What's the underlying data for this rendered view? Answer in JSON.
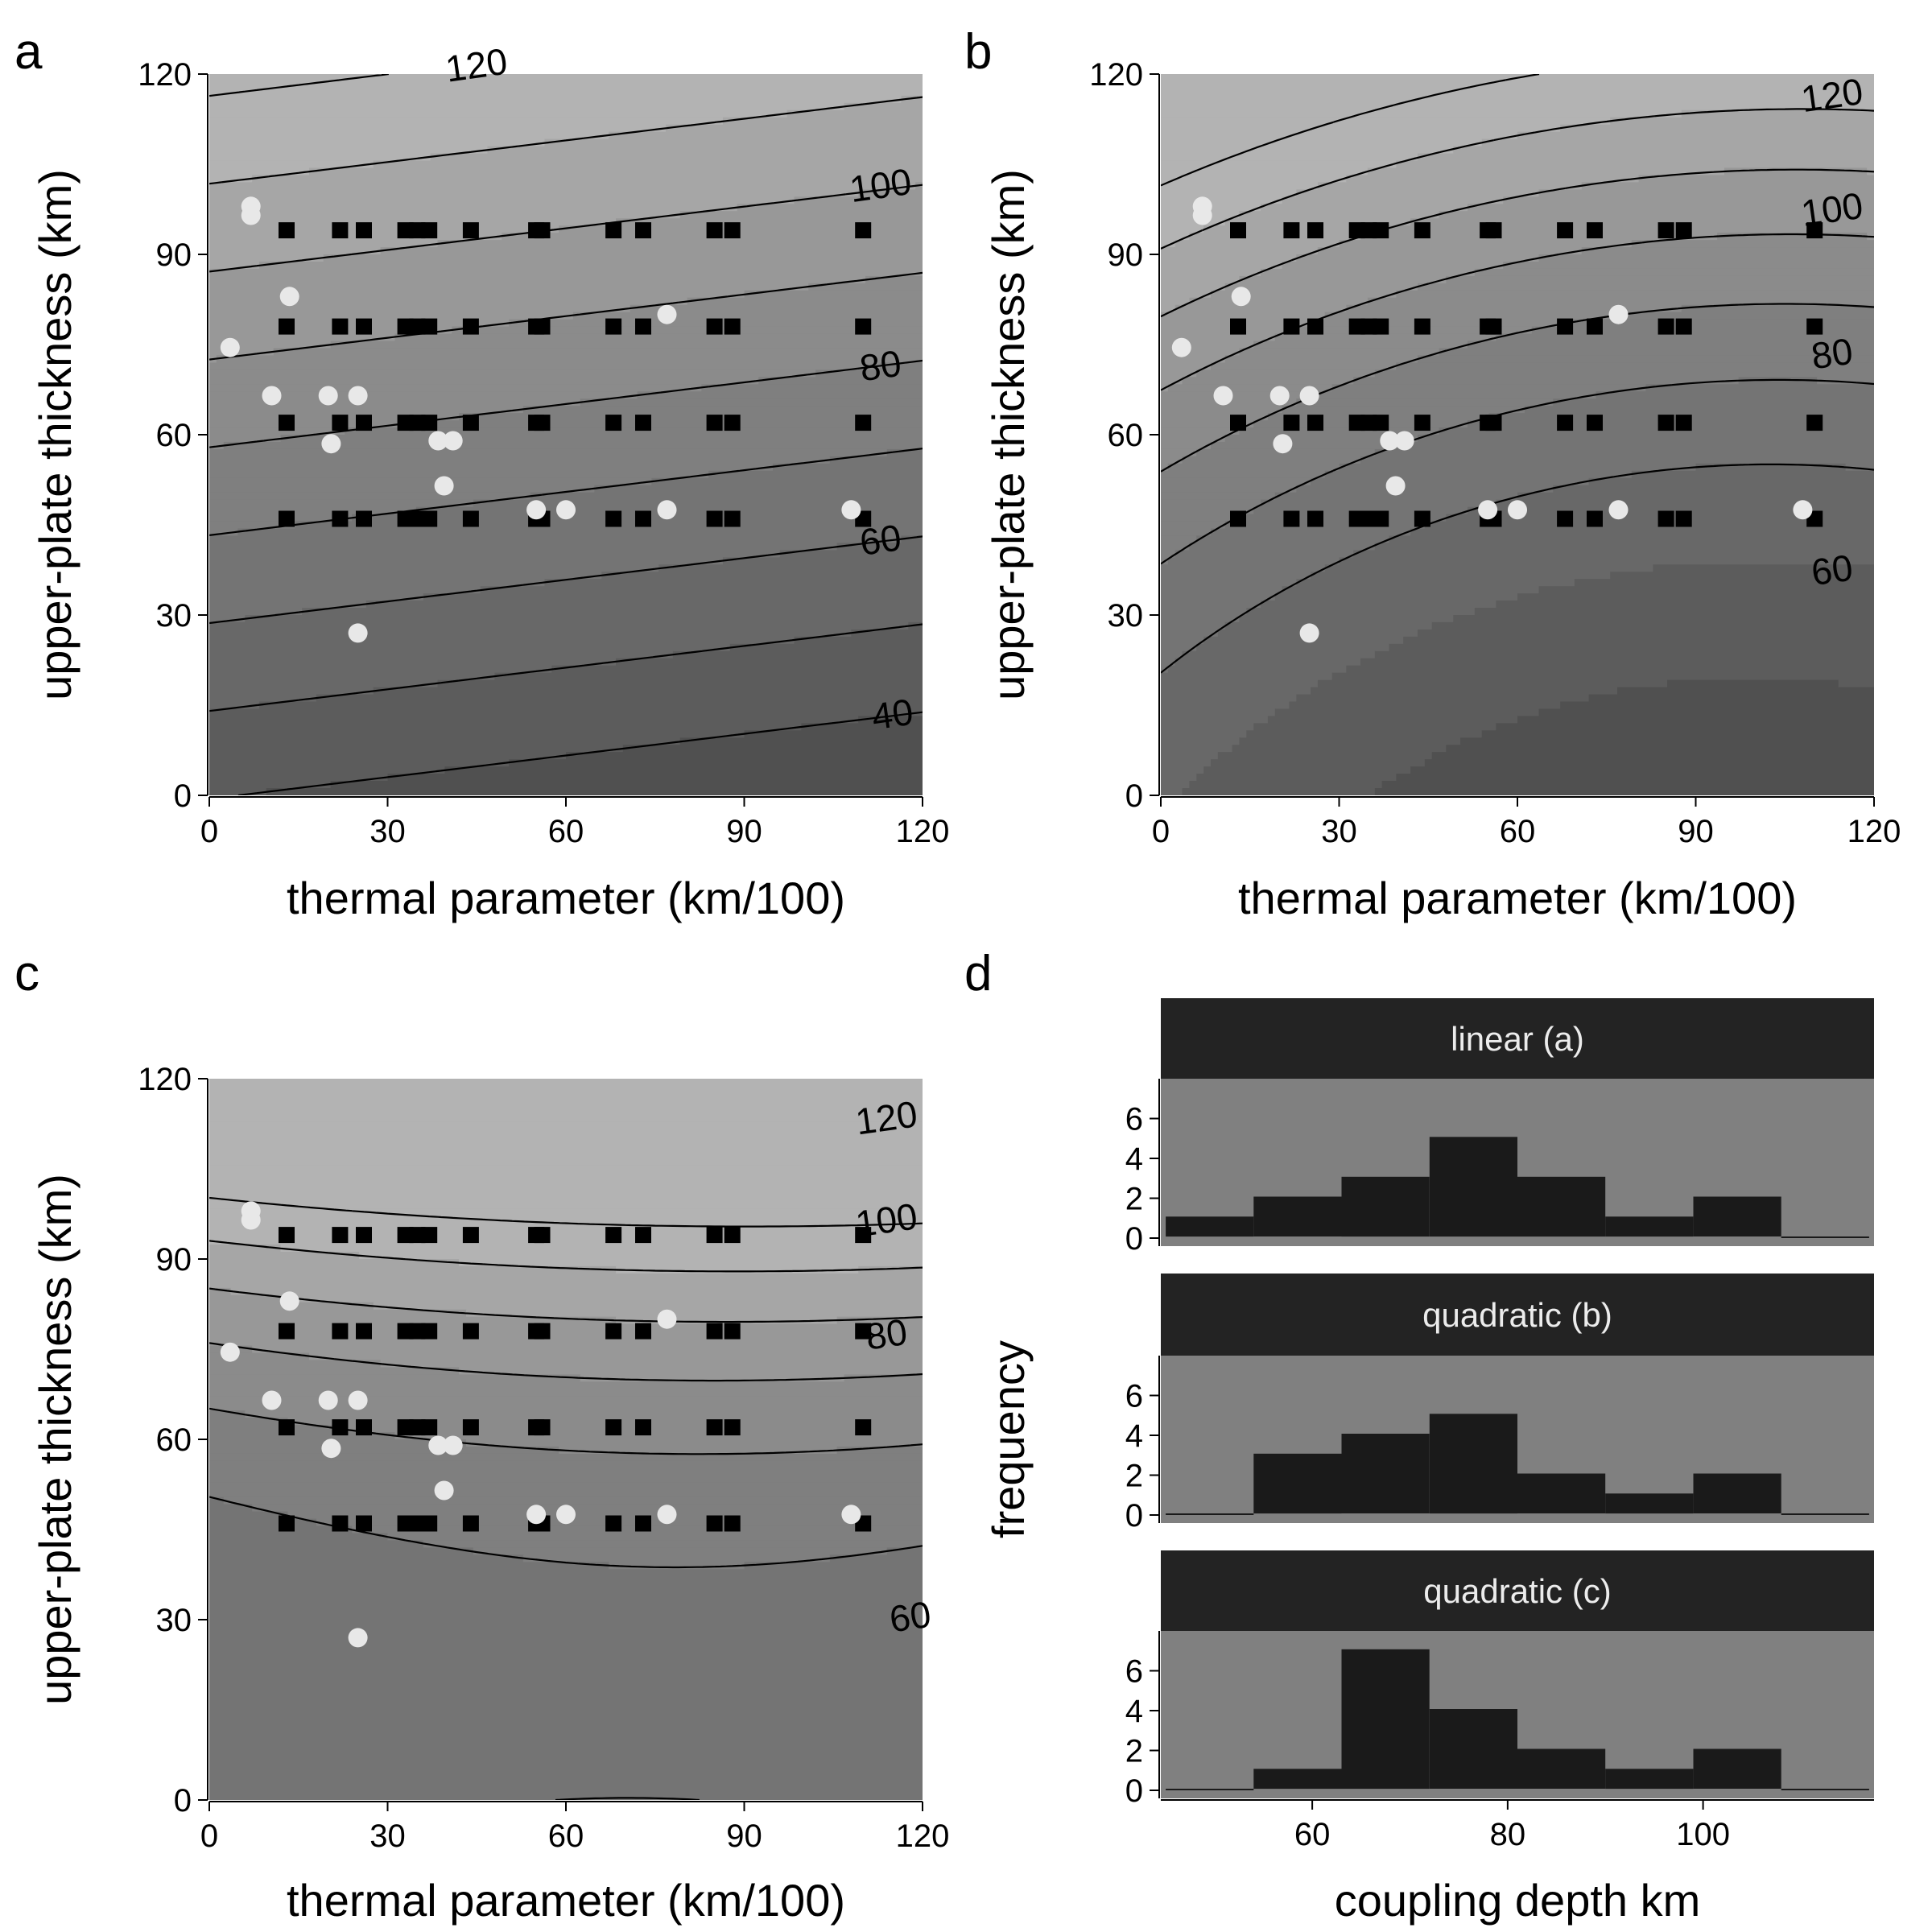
{
  "colors": {
    "contour_line": "#000000",
    "band_fills": [
      "#3a3a3a",
      "#464646",
      "#505050",
      "#5c5c5c",
      "#686868",
      "#747474",
      "#7f7f7f",
      "#8b8b8b",
      "#989898",
      "#a6a6a6",
      "#b3b3b3"
    ],
    "square_marker": "#000000",
    "circle_marker": "#e8e8e8",
    "histogram_panel": "#808080",
    "histogram_bar": "#1a1a1a",
    "strip_background": "#232323"
  },
  "chart_data": [
    {
      "id": "a",
      "panel_letter": "a",
      "type": "contour",
      "model": "linear",
      "xlabel": "thermal parameter (km/100)",
      "ylabel": "upper-plate thickness (km)",
      "xlim": [
        0,
        120
      ],
      "ylim": [
        0,
        120
      ],
      "xticks": [
        0,
        30,
        60,
        90,
        120
      ],
      "yticks": [
        0,
        30,
        60,
        90,
        120
      ],
      "surface": {
        "intercept": 40.4,
        "x_coef": -0.0822,
        "y_coef": 0.684
      },
      "contour_levels": [
        30,
        40,
        50,
        60,
        70,
        80,
        90,
        100,
        110,
        120
      ],
      "contour_labels": [
        {
          "text": "120",
          "x": 45,
          "y": 121
        },
        {
          "text": "100",
          "x": 113,
          "y": 101
        },
        {
          "text": "80",
          "x": 113,
          "y": 71
        },
        {
          "text": "60",
          "x": 113,
          "y": 42
        },
        {
          "text": "40",
          "x": 115,
          "y": 13
        }
      ],
      "squares": [
        {
          "x": 13,
          "y": 94
        },
        {
          "x": 22,
          "y": 94
        },
        {
          "x": 26,
          "y": 94
        },
        {
          "x": 33,
          "y": 94
        },
        {
          "x": 35,
          "y": 94
        },
        {
          "x": 37,
          "y": 94
        },
        {
          "x": 44,
          "y": 94
        },
        {
          "x": 55,
          "y": 94
        },
        {
          "x": 56,
          "y": 94
        },
        {
          "x": 68,
          "y": 94
        },
        {
          "x": 73,
          "y": 94
        },
        {
          "x": 85,
          "y": 94
        },
        {
          "x": 88,
          "y": 94
        },
        {
          "x": 110,
          "y": 94
        },
        {
          "x": 13,
          "y": 78
        },
        {
          "x": 22,
          "y": 78
        },
        {
          "x": 26,
          "y": 78
        },
        {
          "x": 33,
          "y": 78
        },
        {
          "x": 35,
          "y": 78
        },
        {
          "x": 37,
          "y": 78
        },
        {
          "x": 44,
          "y": 78
        },
        {
          "x": 55,
          "y": 78
        },
        {
          "x": 56,
          "y": 78
        },
        {
          "x": 68,
          "y": 78
        },
        {
          "x": 73,
          "y": 78
        },
        {
          "x": 85,
          "y": 78
        },
        {
          "x": 88,
          "y": 78
        },
        {
          "x": 110,
          "y": 78
        },
        {
          "x": 13,
          "y": 62
        },
        {
          "x": 22,
          "y": 62
        },
        {
          "x": 26,
          "y": 62
        },
        {
          "x": 33,
          "y": 62
        },
        {
          "x": 35,
          "y": 62
        },
        {
          "x": 37,
          "y": 62
        },
        {
          "x": 44,
          "y": 62
        },
        {
          "x": 55,
          "y": 62
        },
        {
          "x": 56,
          "y": 62
        },
        {
          "x": 68,
          "y": 62
        },
        {
          "x": 73,
          "y": 62
        },
        {
          "x": 85,
          "y": 62
        },
        {
          "x": 88,
          "y": 62
        },
        {
          "x": 110,
          "y": 62
        },
        {
          "x": 13,
          "y": 46
        },
        {
          "x": 22,
          "y": 46
        },
        {
          "x": 26,
          "y": 46
        },
        {
          "x": 33,
          "y": 46
        },
        {
          "x": 35,
          "y": 46
        },
        {
          "x": 37,
          "y": 46
        },
        {
          "x": 44,
          "y": 46
        },
        {
          "x": 55,
          "y": 46
        },
        {
          "x": 56,
          "y": 46
        },
        {
          "x": 68,
          "y": 46
        },
        {
          "x": 73,
          "y": 46
        },
        {
          "x": 85,
          "y": 46
        },
        {
          "x": 88,
          "y": 46
        },
        {
          "x": 110,
          "y": 46
        }
      ],
      "circles": [
        {
          "x": 7,
          "y": 98
        },
        {
          "x": 7,
          "y": 96.5
        },
        {
          "x": 3.5,
          "y": 74.5
        },
        {
          "x": 13.5,
          "y": 83
        },
        {
          "x": 10.5,
          "y": 66.5
        },
        {
          "x": 20,
          "y": 66.5
        },
        {
          "x": 25,
          "y": 66.5
        },
        {
          "x": 20.5,
          "y": 58.5
        },
        {
          "x": 38.5,
          "y": 59
        },
        {
          "x": 41,
          "y": 59
        },
        {
          "x": 39.5,
          "y": 51.5
        },
        {
          "x": 55,
          "y": 47.5
        },
        {
          "x": 60,
          "y": 47.5
        },
        {
          "x": 77,
          "y": 47.5
        },
        {
          "x": 108,
          "y": 47.5
        },
        {
          "x": 77,
          "y": 80
        },
        {
          "x": 25,
          "y": 27
        }
      ]
    },
    {
      "id": "b",
      "panel_letter": "b",
      "type": "contour",
      "model": "quadratic",
      "xlabel": "thermal parameter (km/100)",
      "ylabel": "upper-plate thickness (km)",
      "xlim": [
        0,
        120
      ],
      "ylim": [
        0,
        120
      ],
      "xticks": [
        0,
        30,
        60,
        90,
        120
      ],
      "yticks": [
        0,
        30,
        60,
        90,
        120
      ],
      "surface": {
        "intercept": 51.12,
        "x_coef": -0.3867,
        "y_coef": 0.3745,
        "xx_coef": 0.001976,
        "yy_coef": 0.003,
        "xy_coef": -0.000347
      },
      "contour_levels": [
        60,
        70,
        80,
        90,
        100,
        110,
        120
      ],
      "contour_labels": [
        {
          "text": "120",
          "x": 113,
          "y": 116
        },
        {
          "text": "100",
          "x": 113,
          "y": 97
        },
        {
          "text": "80",
          "x": 113,
          "y": 73
        },
        {
          "text": "60",
          "x": 113,
          "y": 37
        }
      ],
      "squares": [
        {
          "x": 13,
          "y": 94
        },
        {
          "x": 22,
          "y": 94
        },
        {
          "x": 26,
          "y": 94
        },
        {
          "x": 33,
          "y": 94
        },
        {
          "x": 35,
          "y": 94
        },
        {
          "x": 37,
          "y": 94
        },
        {
          "x": 44,
          "y": 94
        },
        {
          "x": 55,
          "y": 94
        },
        {
          "x": 56,
          "y": 94
        },
        {
          "x": 68,
          "y": 94
        },
        {
          "x": 73,
          "y": 94
        },
        {
          "x": 85,
          "y": 94
        },
        {
          "x": 88,
          "y": 94
        },
        {
          "x": 110,
          "y": 94
        },
        {
          "x": 13,
          "y": 78
        },
        {
          "x": 22,
          "y": 78
        },
        {
          "x": 26,
          "y": 78
        },
        {
          "x": 33,
          "y": 78
        },
        {
          "x": 35,
          "y": 78
        },
        {
          "x": 37,
          "y": 78
        },
        {
          "x": 44,
          "y": 78
        },
        {
          "x": 55,
          "y": 78
        },
        {
          "x": 56,
          "y": 78
        },
        {
          "x": 68,
          "y": 78
        },
        {
          "x": 73,
          "y": 78
        },
        {
          "x": 85,
          "y": 78
        },
        {
          "x": 88,
          "y": 78
        },
        {
          "x": 110,
          "y": 78
        },
        {
          "x": 13,
          "y": 62
        },
        {
          "x": 22,
          "y": 62
        },
        {
          "x": 26,
          "y": 62
        },
        {
          "x": 33,
          "y": 62
        },
        {
          "x": 35,
          "y": 62
        },
        {
          "x": 37,
          "y": 62
        },
        {
          "x": 44,
          "y": 62
        },
        {
          "x": 55,
          "y": 62
        },
        {
          "x": 56,
          "y": 62
        },
        {
          "x": 68,
          "y": 62
        },
        {
          "x": 73,
          "y": 62
        },
        {
          "x": 85,
          "y": 62
        },
        {
          "x": 88,
          "y": 62
        },
        {
          "x": 110,
          "y": 62
        },
        {
          "x": 13,
          "y": 46
        },
        {
          "x": 22,
          "y": 46
        },
        {
          "x": 26,
          "y": 46
        },
        {
          "x": 33,
          "y": 46
        },
        {
          "x": 35,
          "y": 46
        },
        {
          "x": 37,
          "y": 46
        },
        {
          "x": 44,
          "y": 46
        },
        {
          "x": 55,
          "y": 46
        },
        {
          "x": 56,
          "y": 46
        },
        {
          "x": 68,
          "y": 46
        },
        {
          "x": 73,
          "y": 46
        },
        {
          "x": 85,
          "y": 46
        },
        {
          "x": 88,
          "y": 46
        },
        {
          "x": 110,
          "y": 46
        }
      ],
      "circles": [
        {
          "x": 7,
          "y": 98
        },
        {
          "x": 7,
          "y": 96.5
        },
        {
          "x": 3.5,
          "y": 74.5
        },
        {
          "x": 13.5,
          "y": 83
        },
        {
          "x": 10.5,
          "y": 66.5
        },
        {
          "x": 20,
          "y": 66.5
        },
        {
          "x": 25,
          "y": 66.5
        },
        {
          "x": 20.5,
          "y": 58.5
        },
        {
          "x": 38.5,
          "y": 59
        },
        {
          "x": 41,
          "y": 59
        },
        {
          "x": 39.5,
          "y": 51.5
        },
        {
          "x": 55,
          "y": 47.5
        },
        {
          "x": 60,
          "y": 47.5
        },
        {
          "x": 77,
          "y": 47.5
        },
        {
          "x": 108,
          "y": 47.5
        },
        {
          "x": 77,
          "y": 80
        },
        {
          "x": 25,
          "y": 27
        }
      ]
    },
    {
      "id": "c",
      "panel_letter": "c",
      "type": "contour",
      "model": "quadratic",
      "xlabel": "thermal parameter (km/100)",
      "ylabel": "upper-plate thickness (km)",
      "xlim": [
        0,
        120
      ],
      "ylim": [
        0,
        120
      ],
      "xticks": [
        0,
        30,
        60,
        90,
        120
      ],
      "yticks": [
        0,
        30,
        60,
        90,
        120
      ],
      "surface": {
        "intercept": 66.0,
        "x_coef": 0.1172,
        "y_coef": -0.3867,
        "xx_coef": -0.000833,
        "yy_coef": 0.00924,
        "xy_coef": 0.000347
      },
      "contour_levels": [
        60,
        70,
        80,
        90,
        100,
        110,
        120
      ],
      "contour_labels": [
        {
          "text": "120",
          "x": 114,
          "y": 113
        },
        {
          "text": "100",
          "x": 114,
          "y": 96
        },
        {
          "text": "80",
          "x": 114,
          "y": 77
        },
        {
          "text": "60",
          "x": 118,
          "y": 30
        }
      ],
      "squares": [
        {
          "x": 13,
          "y": 94
        },
        {
          "x": 22,
          "y": 94
        },
        {
          "x": 26,
          "y": 94
        },
        {
          "x": 33,
          "y": 94
        },
        {
          "x": 35,
          "y": 94
        },
        {
          "x": 37,
          "y": 94
        },
        {
          "x": 44,
          "y": 94
        },
        {
          "x": 55,
          "y": 94
        },
        {
          "x": 56,
          "y": 94
        },
        {
          "x": 68,
          "y": 94
        },
        {
          "x": 73,
          "y": 94
        },
        {
          "x": 85,
          "y": 94
        },
        {
          "x": 88,
          "y": 94
        },
        {
          "x": 110,
          "y": 94
        },
        {
          "x": 13,
          "y": 78
        },
        {
          "x": 22,
          "y": 78
        },
        {
          "x": 26,
          "y": 78
        },
        {
          "x": 33,
          "y": 78
        },
        {
          "x": 35,
          "y": 78
        },
        {
          "x": 37,
          "y": 78
        },
        {
          "x": 44,
          "y": 78
        },
        {
          "x": 55,
          "y": 78
        },
        {
          "x": 56,
          "y": 78
        },
        {
          "x": 68,
          "y": 78
        },
        {
          "x": 73,
          "y": 78
        },
        {
          "x": 85,
          "y": 78
        },
        {
          "x": 88,
          "y": 78
        },
        {
          "x": 110,
          "y": 78
        },
        {
          "x": 13,
          "y": 62
        },
        {
          "x": 22,
          "y": 62
        },
        {
          "x": 26,
          "y": 62
        },
        {
          "x": 33,
          "y": 62
        },
        {
          "x": 35,
          "y": 62
        },
        {
          "x": 37,
          "y": 62
        },
        {
          "x": 44,
          "y": 62
        },
        {
          "x": 55,
          "y": 62
        },
        {
          "x": 56,
          "y": 62
        },
        {
          "x": 68,
          "y": 62
        },
        {
          "x": 73,
          "y": 62
        },
        {
          "x": 85,
          "y": 62
        },
        {
          "x": 88,
          "y": 62
        },
        {
          "x": 110,
          "y": 62
        },
        {
          "x": 13,
          "y": 46
        },
        {
          "x": 22,
          "y": 46
        },
        {
          "x": 26,
          "y": 46
        },
        {
          "x": 33,
          "y": 46
        },
        {
          "x": 35,
          "y": 46
        },
        {
          "x": 37,
          "y": 46
        },
        {
          "x": 44,
          "y": 46
        },
        {
          "x": 55,
          "y": 46
        },
        {
          "x": 56,
          "y": 46
        },
        {
          "x": 68,
          "y": 46
        },
        {
          "x": 73,
          "y": 46
        },
        {
          "x": 85,
          "y": 46
        },
        {
          "x": 88,
          "y": 46
        },
        {
          "x": 110,
          "y": 46
        }
      ],
      "circles": [
        {
          "x": 7,
          "y": 98
        },
        {
          "x": 7,
          "y": 96.5
        },
        {
          "x": 3.5,
          "y": 74.5
        },
        {
          "x": 13.5,
          "y": 83
        },
        {
          "x": 10.5,
          "y": 66.5
        },
        {
          "x": 20,
          "y": 66.5
        },
        {
          "x": 25,
          "y": 66.5
        },
        {
          "x": 20.5,
          "y": 58.5
        },
        {
          "x": 38.5,
          "y": 59
        },
        {
          "x": 41,
          "y": 59
        },
        {
          "x": 39.5,
          "y": 51.5
        },
        {
          "x": 55,
          "y": 47.5
        },
        {
          "x": 60,
          "y": 47.5
        },
        {
          "x": 77,
          "y": 47.5
        },
        {
          "x": 108,
          "y": 47.5
        },
        {
          "x": 77,
          "y": 80
        },
        {
          "x": 25,
          "y": 27
        }
      ]
    },
    {
      "id": "d",
      "panel_letter": "d",
      "type": "bar",
      "style": "histogram",
      "xlabel": "coupling depth km",
      "ylabel": "frequency",
      "xlim": [
        44.5,
        117.5
      ],
      "xticks": [
        60,
        80,
        100
      ],
      "ylim": [
        0,
        8
      ],
      "yticks": [
        0,
        2,
        4,
        6
      ],
      "bins": [
        49.5,
        58.5,
        67.5,
        76.5,
        85.5,
        94.5,
        103.5,
        112.5
      ],
      "bin_edges": [
        45,
        54,
        63,
        72,
        81,
        90,
        99,
        108,
        117
      ],
      "series": [
        {
          "name": "linear (a)",
          "values": [
            1,
            2,
            3,
            5,
            3,
            1,
            2,
            0
          ]
        },
        {
          "name": "quadratic (b)",
          "values": [
            0,
            3,
            4,
            5,
            2,
            1,
            2,
            0
          ]
        },
        {
          "name": "quadratic (c)",
          "values": [
            0,
            1,
            7,
            4,
            2,
            1,
            2,
            0
          ]
        }
      ]
    }
  ]
}
